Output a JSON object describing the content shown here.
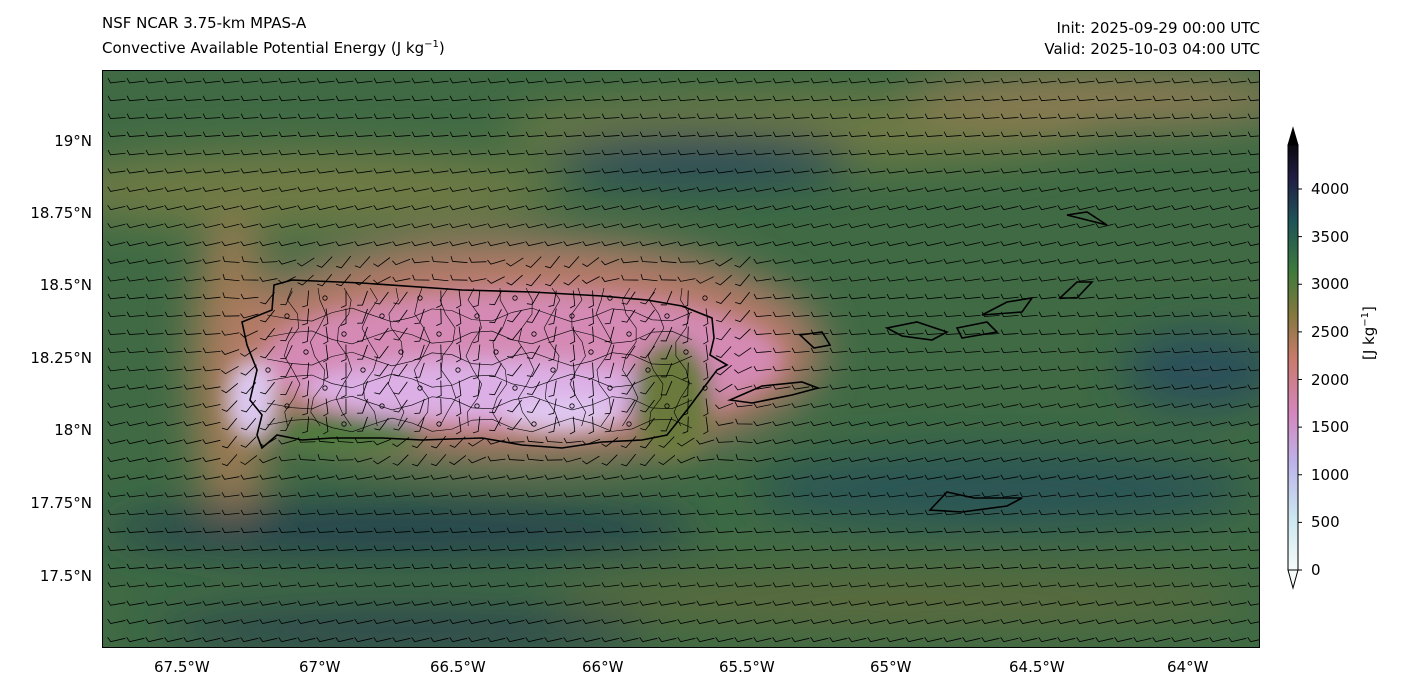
{
  "title_left_1": "NSF NCAR 3.75-km MPAS-A",
  "title_left_2": "Convective Available Potential Energy (J kg",
  "title_left_2_sup": "−1",
  "title_left_2_end": ")",
  "init": "Init: 2025-09-29 00:00 UTC",
  "valid": "Valid: 2025-10-03 04:00 UTC",
  "lat_ticks": [
    "19°N",
    "18.75°N",
    "18.5°N",
    "18.25°N",
    "18°N",
    "17.75°N",
    "17.5°N"
  ],
  "lon_ticks": [
    "67.5°W",
    "67°W",
    "66.5°W",
    "66°W",
    "65.5°W",
    "65°W",
    "64.5°W",
    "64°W"
  ],
  "colorbar": {
    "ticks": [
      "0",
      "500",
      "1000",
      "1500",
      "2000",
      "2500",
      "3000",
      "3500",
      "4000"
    ],
    "unit": "[J kg",
    "unit_sup": "−1",
    "unit_end": "]",
    "range": [
      0,
      4000
    ],
    "extend": "both"
  },
  "colors": {
    "low": "#f5fbf9",
    "mid": "#d682b6",
    "high": "#0e0a17"
  }
}
